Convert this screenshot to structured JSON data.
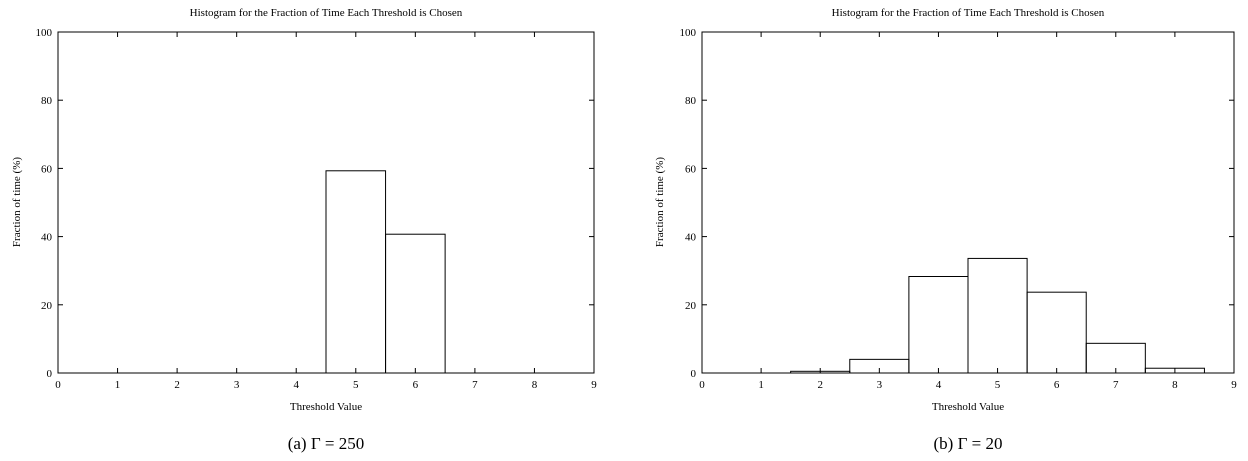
{
  "chart_data": [
    {
      "type": "bar",
      "title": "Histogram for the Fraction of Time Each Threshold is Chosen",
      "xlabel": "Threshold Value",
      "ylabel": "Fraction of time (%)",
      "xlim": [
        0,
        9
      ],
      "ylim": [
        0,
        100
      ],
      "xticks": [
        0,
        1,
        2,
        3,
        4,
        5,
        6,
        7,
        8,
        9
      ],
      "yticks": [
        0,
        20,
        40,
        60,
        80,
        100
      ],
      "categories": [
        0,
        1,
        2,
        3,
        4,
        5,
        6,
        7,
        8
      ],
      "values": [
        0,
        0,
        0,
        0,
        0,
        59.3,
        40.7,
        0,
        0
      ],
      "grid": false,
      "caption": "(a) Γ = 250"
    },
    {
      "type": "bar",
      "title": "Histogram for the Fraction of Time Each Threshold is Chosen",
      "xlabel": "Threshold Value",
      "ylabel": "Fraction of time (%)",
      "xlim": [
        0,
        9
      ],
      "ylim": [
        0,
        100
      ],
      "xticks": [
        0,
        1,
        2,
        3,
        4,
        5,
        6,
        7,
        8,
        9
      ],
      "yticks": [
        0,
        20,
        40,
        60,
        80,
        100
      ],
      "categories": [
        0,
        1,
        2,
        3,
        4,
        5,
        6,
        7,
        8
      ],
      "values": [
        0,
        0,
        0.5,
        4.0,
        28.3,
        33.6,
        23.7,
        8.7,
        1.4
      ],
      "grid": false,
      "caption": "(b) Γ = 20"
    }
  ]
}
